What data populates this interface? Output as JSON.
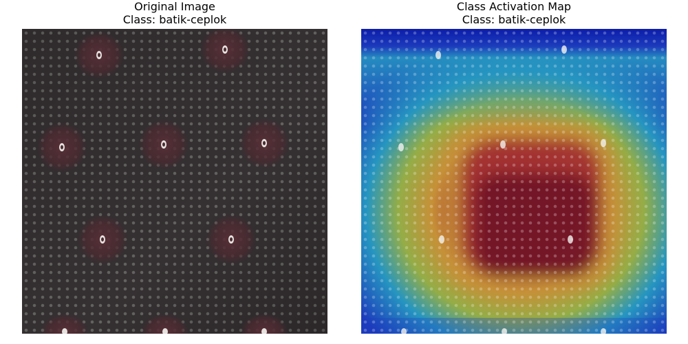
{
  "panels": [
    {
      "title": "Original Image",
      "class_line": "Class: batik-ceplok"
    },
    {
      "title": "Class Activation Map",
      "class_line": "Class: batik-ceplok"
    }
  ],
  "colors": {
    "fabric_base": "#3a3234",
    "fabric_dots": "#8a8a86",
    "motif": "#4a2a30",
    "motif_highlight": "#e6e2e0",
    "cam_low": "#0b1aa8",
    "cam_mid_low": "#2aa7c4",
    "cam_mid": "#a8c23a",
    "cam_mid_high": "#e1a12a",
    "cam_high": "#b3261f",
    "cam_peak": "#7a1412"
  }
}
